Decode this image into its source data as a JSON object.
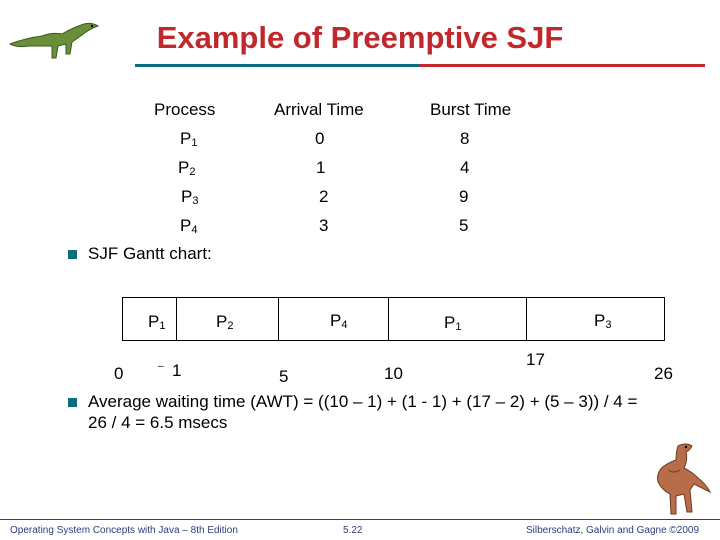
{
  "title": "Example of Preemptive SJF",
  "table": {
    "headers": [
      "Process",
      "Arrival Time",
      "Burst Time"
    ],
    "rows": [
      {
        "p": "P",
        "sub": "1",
        "arrival": "0",
        "burst": "8"
      },
      {
        "p": "P",
        "sub": "2",
        "arrival": "1",
        "burst": "4"
      },
      {
        "p": "P",
        "sub": "3",
        "arrival": "2",
        "burst": "9"
      },
      {
        "p": "P",
        "sub": "4",
        "arrival": "3",
        "burst": "5"
      }
    ]
  },
  "bullets": {
    "gantt_label": "SJF Gantt chart:",
    "awt_line1": "Average waiting time (AWT) = ((10 – 1) + (1 - 1) + (17 – 2) + (5 – 3)) / 4 =",
    "awt_line2": "26 / 4 = 6.5 msecs"
  },
  "gantt": {
    "segments": [
      {
        "p": "P",
        "sub": "1"
      },
      {
        "p": "P",
        "sub": "2"
      },
      {
        "p": "P",
        "sub": "4"
      },
      {
        "p": "P",
        "sub": "1"
      },
      {
        "p": "P",
        "sub": "3"
      }
    ],
    "ticks": [
      "0",
      "1",
      "5",
      "10",
      "17",
      "26"
    ]
  },
  "footer": {
    "left": "Operating System Concepts with Java – 8th Edition",
    "center": "5.22",
    "right": "Silberschatz, Galvin and Gagne ©2009"
  },
  "colors": {
    "title": "#c0282c",
    "accent": "#0b6d80",
    "footer": "#2e3d7a"
  },
  "icons": [
    "dinosaur-top-left-icon",
    "dinosaur-bottom-right-icon"
  ]
}
